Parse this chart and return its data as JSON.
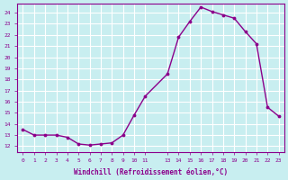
{
  "x": [
    0,
    1,
    2,
    3,
    4,
    5,
    6,
    7,
    8,
    9,
    10,
    11,
    13,
    14,
    15,
    16,
    17,
    18,
    19,
    20,
    21,
    22,
    23
  ],
  "y": [
    13.5,
    13.0,
    13.0,
    13.0,
    12.8,
    12.2,
    12.1,
    12.2,
    12.3,
    13.0,
    14.8,
    16.5,
    18.5,
    21.8,
    23.2,
    24.5,
    24.1,
    23.8,
    23.5,
    22.3,
    21.2,
    15.5,
    14.7
  ],
  "xticks": [
    0,
    1,
    2,
    3,
    4,
    5,
    6,
    7,
    8,
    9,
    10,
    11,
    13,
    14,
    15,
    16,
    17,
    18,
    19,
    20,
    21,
    22,
    23
  ],
  "xtick_labels": [
    "0",
    "1",
    "2",
    "3",
    "4",
    "5",
    "6",
    "7",
    "8",
    "9",
    "10",
    "11",
    "13",
    "14",
    "15",
    "16",
    "17",
    "18",
    "19",
    "20",
    "21",
    "22",
    "23"
  ],
  "yticks": [
    12,
    13,
    14,
    15,
    16,
    17,
    18,
    19,
    20,
    21,
    22,
    23,
    24
  ],
  "ylim": [
    11.5,
    24.8
  ],
  "xlim": [
    -0.5,
    23.5
  ],
  "xlabel": "Windchill (Refroidissement éolien,°C)",
  "line_color": "#8B008B",
  "marker_color": "#8B008B",
  "bg_color": "#c8eef0",
  "grid_color": "#ffffff",
  "axis_color": "#8B008B",
  "tick_color": "#8B008B",
  "label_color": "#8B008B"
}
